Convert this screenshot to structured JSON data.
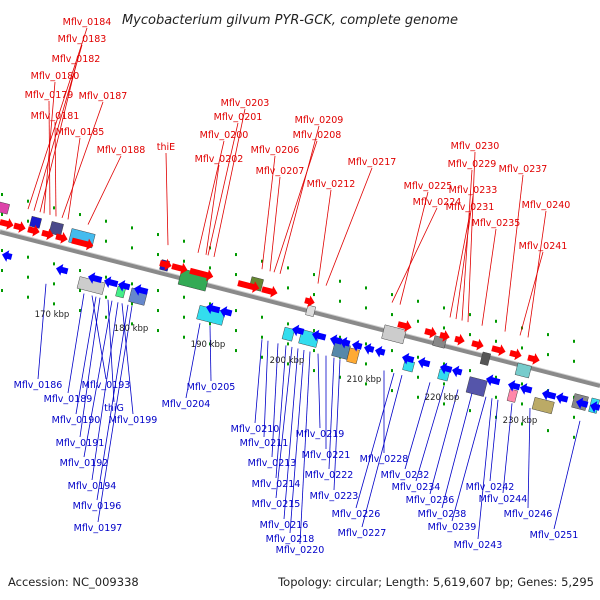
{
  "title": "Mycobacterium gilvum PYR-GCK, complete genome",
  "footer": {
    "accession": "Accession: NC_009338",
    "topology": "Topology: circular; Length: 5,619,607 bp; Genes: 5,295"
  },
  "colors": {
    "forward": "#ff0000",
    "reverse": "#0000ff",
    "backbone": "#8a8a8a",
    "top_label": "#e00000",
    "bottom_label": "#0000c8",
    "tick": "#009900"
  },
  "scale_labels": [
    "170 kbp",
    "180 kbp",
    "190 kbp",
    "200 kbp",
    "210 kbp",
    "220 kbp",
    "230 kbp"
  ],
  "top_labels": [
    "Mflv_0184",
    "Mflv_0183",
    "Mflv_0182",
    "Mflv_0180",
    "Mflv_0179",
    "Mflv_0187",
    "Mflv_0181",
    "Mflv_0185",
    "Mflv_0188",
    "Mflv_0203",
    "Mflv_0201",
    "Mflv_0200",
    "thiE",
    "Mflv_0202",
    "Mflv_0209",
    "Mflv_0208",
    "Mflv_0206",
    "Mflv_0207",
    "Mflv_0212",
    "Mflv_0217",
    "Mflv_0230",
    "Mflv_0229",
    "Mflv_0237",
    "Mflv_0225",
    "Mflv_0233",
    "Mflv_0224",
    "Mflv_0231",
    "Mflv_0240",
    "Mflv_0235",
    "Mflv_0241"
  ],
  "bottom_labels": [
    "Mflv_0186",
    "Mflv_0193",
    "Mflv_0189",
    "thiG",
    "Mflv_0190",
    "Mflv_0199",
    "Mflv_0191",
    "Mflv_0192",
    "Mflv_0194",
    "Mflv_0196",
    "Mflv_0197",
    "Mflv_0205",
    "Mflv_0204",
    "Mflv_0210",
    "Mflv_0211",
    "Mflv_0219",
    "Mflv_0213",
    "Mflv_0221",
    "Mflv_0214",
    "Mflv_0222",
    "Mflv_0215",
    "Mflv_0223",
    "Mflv_0216",
    "Mflv_0218",
    "Mflv_0220",
    "Mflv_0228",
    "Mflv_0226",
    "Mflv_0227",
    "Mflv_0232",
    "Mflv_0234",
    "Mflv_0236",
    "Mflv_0238",
    "Mflv_0239",
    "Mflv_0242",
    "Mflv_0244",
    "Mflv_0246",
    "Mflv_0243",
    "Mflv_0251"
  ]
}
